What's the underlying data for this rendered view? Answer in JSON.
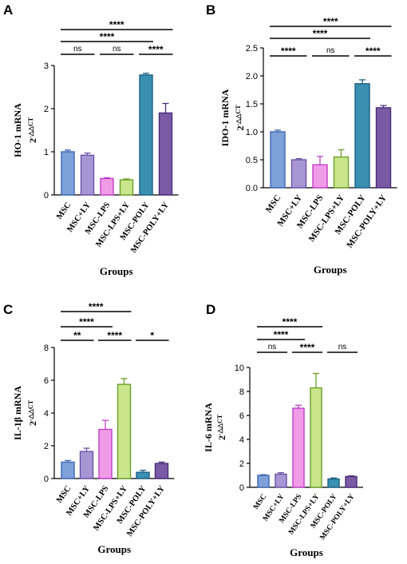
{
  "chart_data": [
    {
      "panel": "A",
      "type": "bar",
      "title": "",
      "ylabel": "HO-1 mRNA",
      "ylabel_unit": "2",
      "ylabel_sup": "-△△CT",
      "xlabel": "Groups",
      "ylim": [
        0,
        3
      ],
      "yticks": [
        0,
        1,
        2,
        3
      ],
      "categories": [
        "MSC",
        "MSC+LY",
        "MSC-LPS",
        "MSC-LPS+LY",
        "MSC-POLY",
        "MSC-POLY+LY"
      ],
      "values": [
        1.0,
        0.92,
        0.38,
        0.35,
        2.78,
        1.9
      ],
      "errors": [
        0.04,
        0.05,
        0.02,
        0.02,
        0.04,
        0.22
      ],
      "colors": [
        "#7fa1d9",
        "#a796d4",
        "#f09be6",
        "#c9e68c",
        "#3a90b1",
        "#7b5aa5"
      ],
      "edge_colors": [
        "#3c66b3",
        "#6a52a8",
        "#c040c8",
        "#6aa028",
        "#1e5f84",
        "#4a2d7a"
      ],
      "significance": [
        {
          "from": 0,
          "to": 1,
          "label": "ns"
        },
        {
          "from": 2,
          "to": 3,
          "label": "ns"
        },
        {
          "from": 4,
          "to": 5,
          "label": "****"
        },
        {
          "from": 0,
          "to": 4,
          "label": "****"
        },
        {
          "from": 0,
          "to": 5,
          "label": "****"
        }
      ]
    },
    {
      "panel": "B",
      "type": "bar",
      "title": "",
      "ylabel": "IDO-1 mRNA",
      "ylabel_unit": "2",
      "ylabel_sup": "-△△CT",
      "xlabel": "Groups",
      "ylim": [
        0,
        2.5
      ],
      "yticks": [
        0.0,
        0.5,
        1.0,
        1.5,
        2.0,
        2.5
      ],
      "categories": [
        "MSC",
        "MSC+LY",
        "MSC-LPS",
        "MSC-LPS+LY",
        "MSC-POLY",
        "MSC-POLY+LY"
      ],
      "values": [
        1.0,
        0.5,
        0.41,
        0.55,
        1.86,
        1.43
      ],
      "errors": [
        0.03,
        0.02,
        0.15,
        0.13,
        0.07,
        0.04
      ],
      "colors": [
        "#7fa1d9",
        "#a796d4",
        "#f09be6",
        "#c9e68c",
        "#3a90b1",
        "#7b5aa5"
      ],
      "edge_colors": [
        "#3c66b3",
        "#6a52a8",
        "#c040c8",
        "#6aa028",
        "#1e5f84",
        "#4a2d7a"
      ],
      "significance": [
        {
          "from": 0,
          "to": 1,
          "label": "****"
        },
        {
          "from": 2,
          "to": 3,
          "label": "ns"
        },
        {
          "from": 4,
          "to": 5,
          "label": "****"
        },
        {
          "from": 0,
          "to": 4,
          "label": "****"
        },
        {
          "from": 0,
          "to": 5,
          "label": "****"
        }
      ]
    },
    {
      "panel": "C",
      "type": "bar",
      "title": "",
      "ylabel": "IL-1β mRNA",
      "ylabel_unit": "2",
      "ylabel_sup": "-△△CT",
      "xlabel": "Groups",
      "ylim": [
        0,
        8
      ],
      "yticks": [
        0,
        2,
        4,
        6,
        8
      ],
      "categories": [
        "MSC",
        "MSC+LY",
        "MSC-LPS",
        "MSC-LPS+LY",
        "MSC-POLY",
        "MSC-POLY+LY"
      ],
      "values": [
        1.0,
        1.65,
        3.0,
        5.75,
        0.38,
        0.92
      ],
      "errors": [
        0.1,
        0.2,
        0.55,
        0.35,
        0.12,
        0.08
      ],
      "colors": [
        "#7fa1d9",
        "#a796d4",
        "#f09be6",
        "#c9e68c",
        "#3a90b1",
        "#7b5aa5"
      ],
      "edge_colors": [
        "#3c66b3",
        "#6a52a8",
        "#c040c8",
        "#6aa028",
        "#1e5f84",
        "#4a2d7a"
      ],
      "significance": [
        {
          "from": 0,
          "to": 1,
          "label": "**"
        },
        {
          "from": 2,
          "to": 3,
          "label": "****"
        },
        {
          "from": 4,
          "to": 5,
          "label": "*"
        },
        {
          "from": 0,
          "to": 2,
          "label": "****"
        },
        {
          "from": 0,
          "to": 3,
          "label": "****"
        }
      ]
    },
    {
      "panel": "D",
      "type": "bar",
      "title": "",
      "ylabel": "IL-6 mRNA",
      "ylabel_unit": "2",
      "ylabel_sup": "-△△CT",
      "xlabel": "Groups",
      "ylim": [
        0,
        10
      ],
      "yticks": [
        0,
        2,
        4,
        6,
        8,
        10
      ],
      "categories": [
        "MSC",
        "MSC+LY",
        "MSC-LPS",
        "MSC-LPS+LY",
        "MSC-POLY",
        "MSC-POLY+LY"
      ],
      "values": [
        1.0,
        1.1,
        6.6,
        8.3,
        0.7,
        0.9
      ],
      "errors": [
        0.05,
        0.12,
        0.25,
        1.2,
        0.08,
        0.05
      ],
      "colors": [
        "#7fa1d9",
        "#a796d4",
        "#f09be6",
        "#c9e68c",
        "#3a90b1",
        "#7b5aa5"
      ],
      "edge_colors": [
        "#3c66b3",
        "#6a52a8",
        "#c040c8",
        "#6aa028",
        "#1e5f84",
        "#4a2d7a"
      ],
      "significance": [
        {
          "from": 0,
          "to": 1,
          "label": "ns"
        },
        {
          "from": 2,
          "to": 3,
          "label": "****"
        },
        {
          "from": 4,
          "to": 5,
          "label": "ns"
        },
        {
          "from": 0,
          "to": 2,
          "label": "****"
        },
        {
          "from": 0,
          "to": 3,
          "label": "****"
        }
      ]
    }
  ]
}
